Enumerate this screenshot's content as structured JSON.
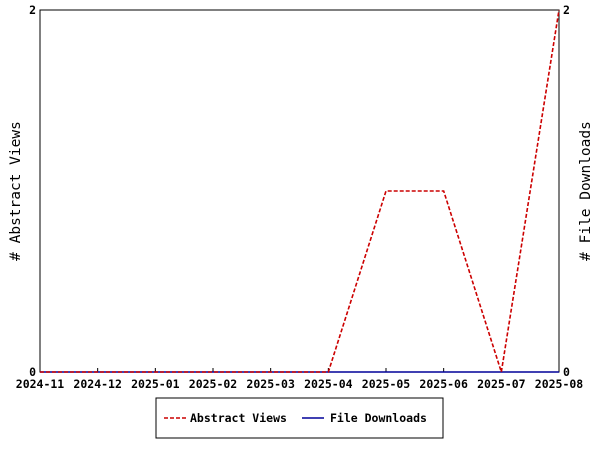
{
  "chart_data": {
    "type": "line",
    "x": [
      "2024-11",
      "2024-12",
      "2025-01",
      "2025-02",
      "2025-03",
      "2025-04",
      "2025-05",
      "2025-06",
      "2025-07",
      "2025-08"
    ],
    "series": [
      {
        "name": "Abstract Views",
        "axis": "left",
        "color": "#cc0000",
        "dash": true,
        "values": [
          0,
          0,
          0,
          0,
          0,
          0,
          1,
          1,
          0,
          2
        ]
      },
      {
        "name": "File Downloads",
        "axis": "right",
        "color": "#000099",
        "dash": false,
        "values": [
          0,
          0,
          0,
          0,
          0,
          0,
          0,
          0,
          0,
          0
        ]
      }
    ],
    "ylabel_left": "# Abstract Views",
    "ylabel_right": "# File Downloads",
    "ylim_left": [
      0,
      2
    ],
    "ylim_right": [
      0,
      2
    ],
    "yticks_left": [
      "0",
      "2"
    ],
    "yticks_right": [
      "0",
      "2"
    ],
    "grid": false,
    "legend_position": "bottom"
  }
}
